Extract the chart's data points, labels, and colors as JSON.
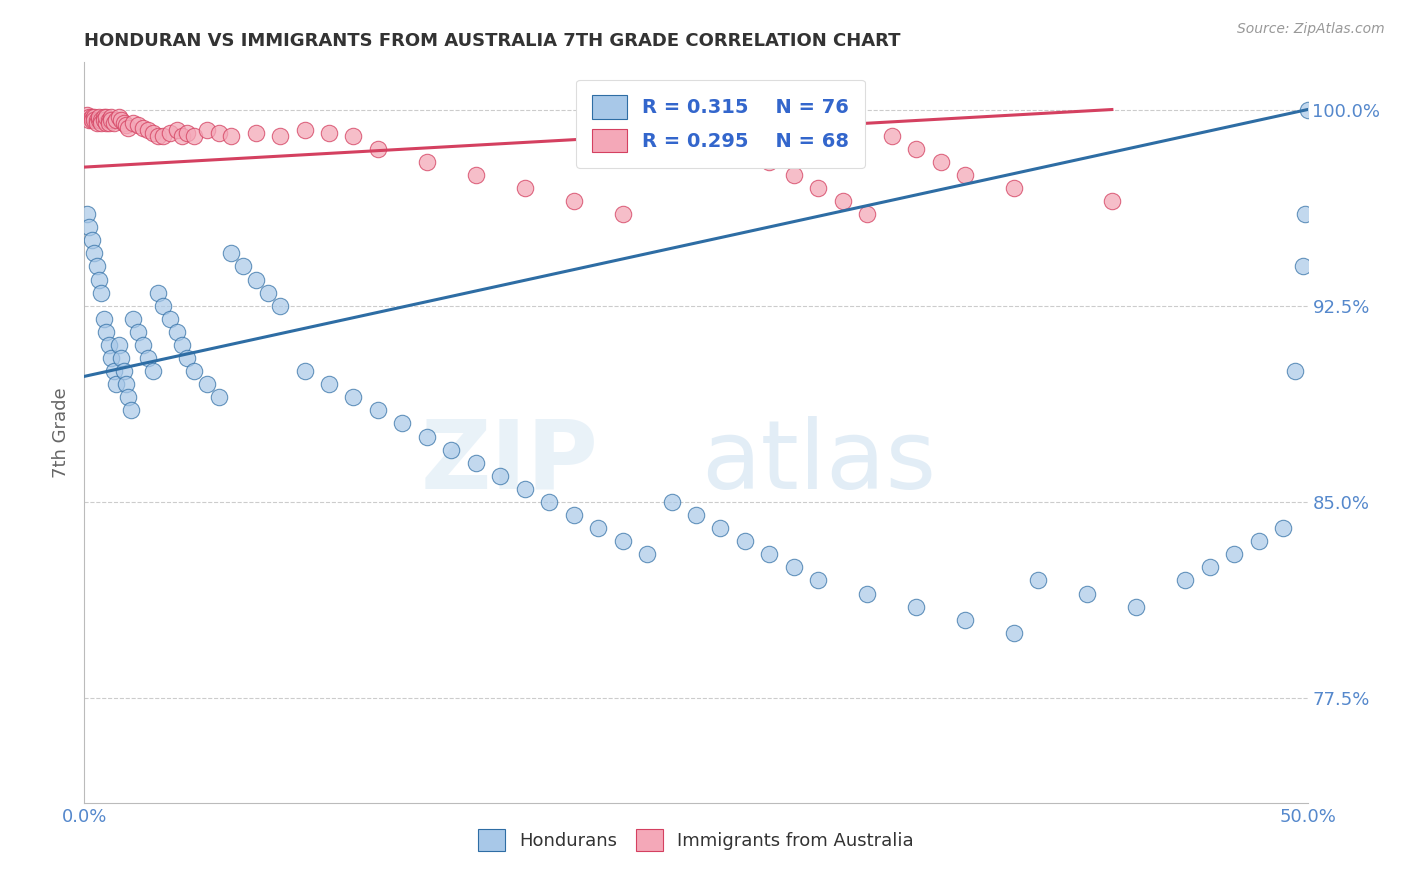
{
  "title": "HONDURAN VS IMMIGRANTS FROM AUSTRALIA 7TH GRADE CORRELATION CHART",
  "source": "Source: ZipAtlas.com",
  "xlabel_blue": "Hondurans",
  "xlabel_pink": "Immigrants from Australia",
  "ylabel": "7th Grade",
  "xmin": 0.0,
  "xmax": 0.5,
  "ymin": 0.735,
  "ymax": 1.018,
  "yticks": [
    0.775,
    0.85,
    0.925,
    1.0
  ],
  "ytick_labels": [
    "77.5%",
    "85.0%",
    "92.5%",
    "100.0%"
  ],
  "xticks": [
    0.0,
    0.1,
    0.2,
    0.3,
    0.4,
    0.5
  ],
  "xtick_labels": [
    "0.0%",
    "",
    "",
    "",
    "",
    "50.0%"
  ],
  "r_blue": 0.315,
  "n_blue": 76,
  "r_pink": 0.295,
  "n_pink": 68,
  "color_blue": "#A8C8E8",
  "color_pink": "#F4A8B8",
  "line_color_blue": "#2E6DA4",
  "line_color_pink": "#D44060",
  "blue_trend_x": [
    0.0,
    0.5
  ],
  "blue_trend_y": [
    0.898,
    1.0
  ],
  "pink_trend_x": [
    0.0,
    0.42
  ],
  "pink_trend_y": [
    0.978,
    1.0
  ],
  "blue_x": [
    0.001,
    0.002,
    0.003,
    0.004,
    0.005,
    0.006,
    0.007,
    0.008,
    0.009,
    0.01,
    0.011,
    0.012,
    0.013,
    0.014,
    0.015,
    0.016,
    0.017,
    0.018,
    0.019,
    0.02,
    0.022,
    0.024,
    0.026,
    0.028,
    0.03,
    0.032,
    0.035,
    0.038,
    0.04,
    0.042,
    0.045,
    0.05,
    0.055,
    0.06,
    0.065,
    0.07,
    0.075,
    0.08,
    0.09,
    0.1,
    0.11,
    0.12,
    0.13,
    0.14,
    0.15,
    0.16,
    0.17,
    0.18,
    0.19,
    0.2,
    0.21,
    0.22,
    0.23,
    0.24,
    0.25,
    0.26,
    0.27,
    0.28,
    0.29,
    0.3,
    0.32,
    0.34,
    0.36,
    0.38,
    0.39,
    0.41,
    0.43,
    0.45,
    0.46,
    0.47,
    0.48,
    0.49,
    0.495,
    0.498,
    0.499,
    0.5
  ],
  "blue_y": [
    0.96,
    0.955,
    0.95,
    0.945,
    0.94,
    0.935,
    0.93,
    0.92,
    0.915,
    0.91,
    0.905,
    0.9,
    0.895,
    0.91,
    0.905,
    0.9,
    0.895,
    0.89,
    0.885,
    0.92,
    0.915,
    0.91,
    0.905,
    0.9,
    0.93,
    0.925,
    0.92,
    0.915,
    0.91,
    0.905,
    0.9,
    0.895,
    0.89,
    0.945,
    0.94,
    0.935,
    0.93,
    0.925,
    0.9,
    0.895,
    0.89,
    0.885,
    0.88,
    0.875,
    0.87,
    0.865,
    0.86,
    0.855,
    0.85,
    0.845,
    0.84,
    0.835,
    0.83,
    0.85,
    0.845,
    0.84,
    0.835,
    0.83,
    0.825,
    0.82,
    0.815,
    0.81,
    0.805,
    0.8,
    0.82,
    0.815,
    0.81,
    0.82,
    0.825,
    0.83,
    0.835,
    0.84,
    0.9,
    0.94,
    0.96,
    1.0
  ],
  "pink_x": [
    0.001,
    0.002,
    0.002,
    0.003,
    0.003,
    0.004,
    0.004,
    0.005,
    0.005,
    0.006,
    0.006,
    0.007,
    0.007,
    0.008,
    0.008,
    0.009,
    0.009,
    0.01,
    0.01,
    0.011,
    0.011,
    0.012,
    0.013,
    0.014,
    0.015,
    0.016,
    0.017,
    0.018,
    0.02,
    0.022,
    0.024,
    0.026,
    0.028,
    0.03,
    0.032,
    0.035,
    0.038,
    0.04,
    0.042,
    0.045,
    0.05,
    0.055,
    0.06,
    0.07,
    0.08,
    0.09,
    0.1,
    0.11,
    0.12,
    0.14,
    0.16,
    0.18,
    0.2,
    0.22,
    0.24,
    0.26,
    0.27,
    0.28,
    0.29,
    0.3,
    0.31,
    0.32,
    0.33,
    0.34,
    0.35,
    0.36,
    0.38,
    0.42
  ],
  "pink_y": [
    0.998,
    0.997,
    0.996,
    0.997,
    0.996,
    0.997,
    0.996,
    0.996,
    0.995,
    0.996,
    0.997,
    0.996,
    0.995,
    0.997,
    0.996,
    0.995,
    0.997,
    0.996,
    0.995,
    0.997,
    0.996,
    0.995,
    0.996,
    0.997,
    0.996,
    0.995,
    0.994,
    0.993,
    0.995,
    0.994,
    0.993,
    0.992,
    0.991,
    0.99,
    0.99,
    0.991,
    0.992,
    0.99,
    0.991,
    0.99,
    0.992,
    0.991,
    0.99,
    0.991,
    0.99,
    0.992,
    0.991,
    0.99,
    0.985,
    0.98,
    0.975,
    0.97,
    0.965,
    0.96,
    0.995,
    0.99,
    0.985,
    0.98,
    0.975,
    0.97,
    0.965,
    0.96,
    0.99,
    0.985,
    0.98,
    0.975,
    0.97,
    0.965
  ],
  "watermark_zip": "ZIP",
  "watermark_atlas": "atlas",
  "background_color": "#FFFFFF",
  "grid_color": "#CCCCCC",
  "title_color": "#333333",
  "axis_label_color": "#666666",
  "tick_label_color": "#5588CC",
  "legend_r_color": "#3366CC"
}
